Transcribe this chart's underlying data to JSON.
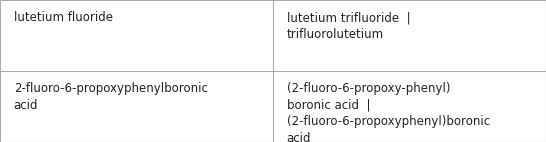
{
  "rows": [
    {
      "col1": "lutetium fluoride",
      "col2": "lutetium trifluoride  |\ntrifluorolutetium"
    },
    {
      "col1": "2-fluoro-6-propoxyphenylboronic\nacid",
      "col2": "(2-fluoro-6-propoxy-phenyl)\nboronic acid  |\n(2-fluoro-6-propoxyphenyl)boronic\nacid"
    }
  ],
  "col_split": 0.5,
  "border_color": "#aaaaaa",
  "background_color": "#ffffff",
  "text_color": "#222222",
  "font_size": 8.5,
  "line_width": 0.8,
  "fig_width": 5.46,
  "fig_height": 1.42,
  "dpi": 100
}
